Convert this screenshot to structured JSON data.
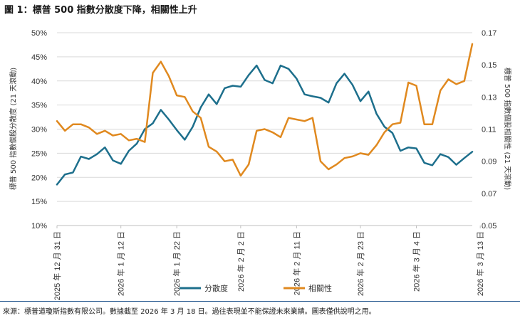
{
  "title": "圖 1：標普 500 指數分散度下降，相關性上升",
  "footer": "來源：標普道瓊斯指數有限公司。數據截至 2026 年 3 月 18 日。過往表現並不能保證未來業績。圖表僅供說明之用。",
  "chart_data": {
    "type": "line",
    "title": "圖 1：標普 500 指數分散度下降，相關性上升",
    "ylabel_left": "標普 500 指數個股分散度 (21 天滾動)",
    "ylabel_right": "標普 500 指數個股相關性 (21 天滾動)",
    "ylim_left": [
      0.1,
      0.5
    ],
    "ylim_right": [
      0.05,
      0.17
    ],
    "yticks_left": [
      "10%",
      "15%",
      "20%",
      "25%",
      "30%",
      "35%",
      "40%",
      "45%",
      "50%"
    ],
    "yticks_right": [
      "0.05",
      "0.07",
      "0.09",
      "0.11",
      "0.13",
      "0.15",
      "0.17"
    ],
    "x_tick_labels": [
      "2025 年 12 月 31 日",
      "2026 年 1 月 12 日",
      "2026 年 1 月 22 日",
      "2026 年 2 月 2 日",
      "2026 年 2 月 11 日",
      "2026 年 2 月 23 日",
      "2026 年 3 月 4 日",
      "2026 年 3 月 13 日"
    ],
    "x_tick_index": [
      0,
      8,
      15,
      23,
      30,
      38,
      45,
      53
    ],
    "grid": true,
    "legend_position": "bottom",
    "colors": {
      "dispersion": "#1d6f8c",
      "correlation": "#e0891f",
      "grid": "#d9d9d9"
    },
    "series": [
      {
        "name": "分散度",
        "axis": "left",
        "values": [
          0.185,
          0.206,
          0.21,
          0.243,
          0.238,
          0.248,
          0.262,
          0.235,
          0.228,
          0.255,
          0.27,
          0.3,
          0.312,
          0.34,
          0.32,
          0.298,
          0.278,
          0.305,
          0.345,
          0.372,
          0.352,
          0.385,
          0.39,
          0.388,
          0.412,
          0.432,
          0.402,
          0.395,
          0.432,
          0.425,
          0.405,
          0.372,
          0.368,
          0.365,
          0.355,
          0.395,
          0.415,
          0.392,
          0.358,
          0.378,
          0.332,
          0.305,
          0.292,
          0.255,
          0.262,
          0.26,
          0.23,
          0.225,
          0.248,
          0.242,
          0.226,
          0.24,
          0.253
        ]
      },
      {
        "name": "相關性",
        "axis": "right",
        "values": [
          0.115,
          0.109,
          0.113,
          0.113,
          0.111,
          0.107,
          0.109,
          0.106,
          0.107,
          0.103,
          0.104,
          0.102,
          0.145,
          0.152,
          0.143,
          0.131,
          0.13,
          0.121,
          0.117,
          0.099,
          0.096,
          0.09,
          0.091,
          0.081,
          0.088,
          0.109,
          0.11,
          0.108,
          0.105,
          0.117,
          0.116,
          0.115,
          0.117,
          0.09,
          0.085,
          0.088,
          0.092,
          0.093,
          0.095,
          0.094,
          0.1,
          0.108,
          0.113,
          0.114,
          0.139,
          0.137,
          0.113,
          0.113,
          0.134,
          0.141,
          0.138,
          0.14,
          0.163
        ]
      }
    ]
  }
}
